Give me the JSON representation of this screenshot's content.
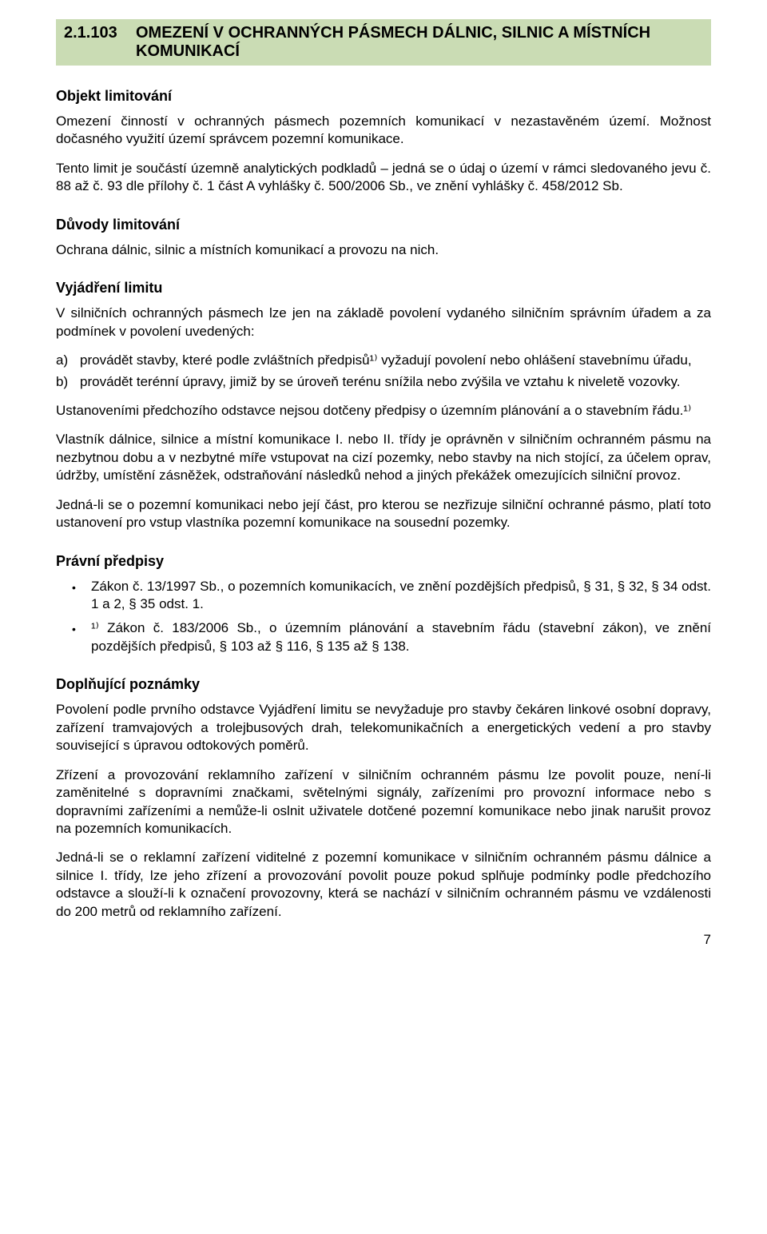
{
  "heading": {
    "number": "2.1.103",
    "title_line1": "OMEZENÍ V OCHRANNÝCH PÁSMECH DÁLNIC, SILNIC A MÍSTNÍCH",
    "title_line2": "KOMUNIKACÍ",
    "bg_color": "#cadcb4",
    "text_color": "#000000",
    "font_size_pt": 15
  },
  "section_labels": {
    "objekt": "Objekt limitování",
    "duvody": "Důvody limitování",
    "vyjadreni": "Vyjádření limitu",
    "pravni": "Právní předpisy",
    "doplnujici": "Doplňující poznámky"
  },
  "objekt": {
    "p1": "Omezení činností v ochranných pásmech pozemních komunikací v nezastavěném území. Možnost dočasného využití území správcem pozemní komunikace.",
    "p2": "Tento limit je součástí územně analytických podkladů – jedná se o údaj o území v rámci sledovaného jevu č. 88 až č. 93 dle přílohy č. 1 část A vyhlášky č. 500/2006 Sb., ve znění vyhlášky č. 458/2012 Sb."
  },
  "duvody": {
    "p1": "Ochrana dálnic, silnic a místních komunikací a provozu na nich."
  },
  "vyjadreni": {
    "intro": "V silničních ochranných pásmech lze jen na základě povolení vydaného silničním správním úřadem a za podmínek v povolení uvedených:",
    "items": [
      {
        "marker": "a)",
        "text": "provádět stavby, které podle zvláštních předpisů¹⁾ vyžadují povolení nebo ohlášení stavebnímu úřadu,"
      },
      {
        "marker": "b)",
        "text": "provádět terénní úpravy, jimiž by se úroveň terénu snížila nebo zvýšila ve vztahu k niveletě vozovky."
      }
    ],
    "p_ust": "Ustanoveními předchozího odstavce nejsou dotčeny předpisy o územním plánování a o stavebním řádu.¹⁾",
    "p_vlastnik": "Vlastník dálnice, silnice a místní komunikace I. nebo II. třídy je oprávněn v silničním ochranném pásmu na nezbytnou dobu a v nezbytné míře vstupovat na cizí pozemky, nebo stavby na nich stojící, za účelem oprav, údržby, umístění zásněžek, odstraňování následků nehod a jiných překážek omezujících silniční provoz.",
    "p_jednali": "Jedná-li se o pozemní komunikaci nebo její část, pro kterou se nezřizuje silniční ochranné pásmo, platí toto ustanovení pro vstup vlastníka pozemní komunikace na sousední pozemky."
  },
  "pravni": {
    "items": [
      "Zákon č. 13/1997 Sb., o pozemních komunikacích, ve znění pozdějších předpisů, § 31, § 32, § 34 odst. 1 a 2, § 35 odst. 1.",
      "¹⁾ Zákon č. 183/2006 Sb., o územním plánování a stavebním řádu (stavební zákon), ve znění pozdějších předpisů, § 103 až § 116, § 135 až § 138."
    ]
  },
  "doplnujici": {
    "p1": "Povolení podle prvního odstavce Vyjádření limitu se nevyžaduje pro stavby čekáren linkové osobní dopravy, zařízení tramvajových a trolejbusových drah, telekomunikačních a energetických vedení a pro stavby související s úpravou odtokových poměrů.",
    "p2": "Zřízení a provozování reklamního zařízení v silničním ochranném pásmu lze povolit pouze, není-li zaměnitelné s dopravními značkami, světelnými signály, zařízeními pro provozní informace nebo s dopravními zařízeními a nemůže-li oslnit uživatele dotčené pozemní komunikace nebo jinak narušit provoz na pozemních komunikacích.",
    "p3": "Jedná-li se o reklamní zařízení viditelné z pozemní komunikace v silničním ochranném pásmu dálnice a silnice I. třídy, lze jeho zřízení a provozování povolit pouze pokud splňuje podmínky podle předchozího odstavce a slouží-li k označení provozovny, která se nachází v silničním ochranném pásmu ve vzdálenosti do 200 metrů od reklamního zařízení."
  },
  "page_number": "7",
  "body_font_size_pt": 13,
  "body_color": "#000000",
  "page_bg": "#ffffff"
}
